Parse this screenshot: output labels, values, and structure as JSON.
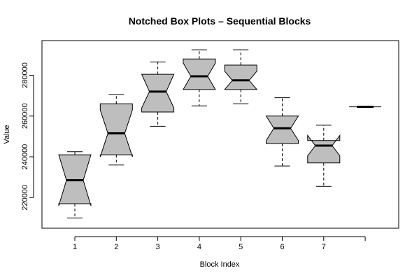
{
  "chart_data": {
    "type": "box",
    "variant": "notched",
    "title": "Notched Box Plots – Sequential Blocks",
    "xlabel": "Block Index",
    "ylabel": "Value",
    "categories": [
      "1",
      "2",
      "3",
      "4",
      "5",
      "6",
      "7",
      ""
    ],
    "yticks": [
      220000,
      240000,
      260000,
      280000
    ],
    "ylim": [
      205000,
      297000
    ],
    "boxes": [
      {
        "label": "1",
        "min": 210000,
        "q1": 217000,
        "median": 228500,
        "q3": 241000,
        "max": 242500,
        "notch": [
          216000,
          241000
        ]
      },
      {
        "label": "2",
        "min": 236000,
        "q1": 241000,
        "median": 251500,
        "q3": 266000,
        "max": 270500,
        "notch": [
          240000,
          263000
        ]
      },
      {
        "label": "3",
        "min": 255000,
        "q1": 262000,
        "median": 272000,
        "q3": 280500,
        "max": 286500,
        "notch": [
          264000,
          280500
        ]
      },
      {
        "label": "4",
        "min": 265000,
        "q1": 273000,
        "median": 279500,
        "q3": 288000,
        "max": 292500,
        "notch": [
          273000,
          286000
        ]
      },
      {
        "label": "5",
        "min": 266000,
        "q1": 273000,
        "median": 277500,
        "q3": 285000,
        "max": 292500,
        "notch": [
          273000,
          282000
        ]
      },
      {
        "label": "6",
        "min": 235500,
        "q1": 246500,
        "median": 254000,
        "q3": 260000,
        "max": 269000,
        "notch": [
          248000,
          260000
        ]
      },
      {
        "label": "7",
        "min": 225500,
        "q1": 237000,
        "median": 245500,
        "q3": 248000,
        "max": 255500,
        "notch": [
          240500,
          250500
        ]
      },
      {
        "label": "",
        "min": 264500,
        "q1": 264500,
        "median": 264500,
        "q3": 264500,
        "max": 264500,
        "notch": [
          264500,
          264500
        ]
      }
    ],
    "colors": {
      "box_fill": "#bebebe",
      "stroke": "#000000",
      "background": "#ffffff"
    },
    "grid": false,
    "legend": "none"
  }
}
